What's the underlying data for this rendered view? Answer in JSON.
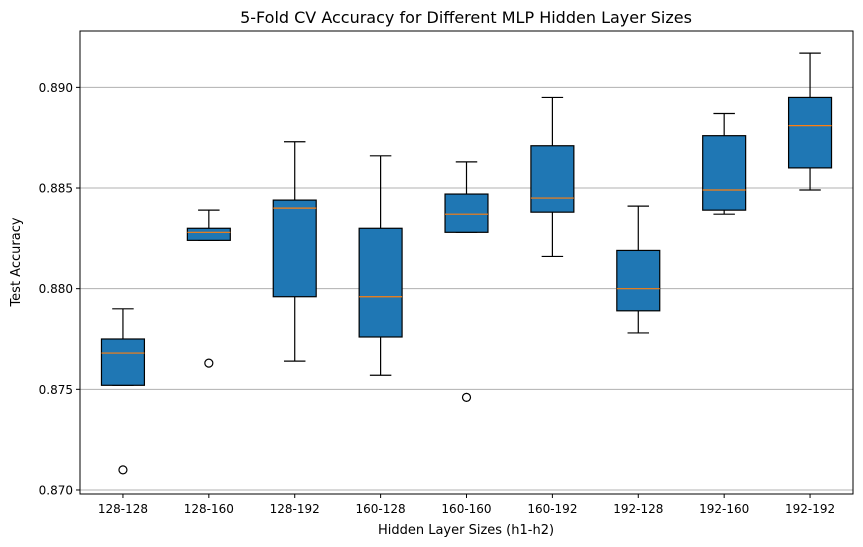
{
  "chart_data": {
    "type": "box",
    "title": "5-Fold CV Accuracy for Different MLP Hidden Layer Sizes",
    "xlabel": "Hidden Layer Sizes (h1-h2)",
    "ylabel": "Test Accuracy",
    "ylim": [
      0.8698,
      0.8928
    ],
    "yticks": [
      0.87,
      0.875,
      0.88,
      0.885,
      0.89
    ],
    "ytick_labels": [
      "0.870",
      "0.875",
      "0.880",
      "0.885",
      "0.890"
    ],
    "grid": "y",
    "categories": [
      "128-128",
      "128-160",
      "128-192",
      "160-128",
      "160-160",
      "160-192",
      "192-128",
      "192-160",
      "192-192"
    ],
    "boxes": [
      {
        "whisker_low": 0.8752,
        "q1": 0.8752,
        "median": 0.8768,
        "q3": 0.8775,
        "whisker_high": 0.879,
        "outliers": [
          0.871
        ]
      },
      {
        "whisker_low": 0.8824,
        "q1": 0.8824,
        "median": 0.8828,
        "q3": 0.883,
        "whisker_high": 0.8839,
        "outliers": [
          0.8763
        ]
      },
      {
        "whisker_low": 0.8764,
        "q1": 0.8796,
        "median": 0.884,
        "q3": 0.8844,
        "whisker_high": 0.8873,
        "outliers": []
      },
      {
        "whisker_low": 0.8757,
        "q1": 0.8776,
        "median": 0.8796,
        "q3": 0.883,
        "whisker_high": 0.8866,
        "outliers": []
      },
      {
        "whisker_low": 0.8828,
        "q1": 0.8828,
        "median": 0.8837,
        "q3": 0.8847,
        "whisker_high": 0.8863,
        "outliers": [
          0.8746
        ]
      },
      {
        "whisker_low": 0.8816,
        "q1": 0.8838,
        "median": 0.8845,
        "q3": 0.8871,
        "whisker_high": 0.8895,
        "outliers": []
      },
      {
        "whisker_low": 0.8778,
        "q1": 0.8789,
        "median": 0.88,
        "q3": 0.8819,
        "whisker_high": 0.8841,
        "outliers": []
      },
      {
        "whisker_low": 0.8837,
        "q1": 0.8839,
        "median": 0.8849,
        "q3": 0.8876,
        "whisker_high": 0.8887,
        "outliers": []
      },
      {
        "whisker_low": 0.8849,
        "q1": 0.886,
        "median": 0.8881,
        "q3": 0.8895,
        "whisker_high": 0.8917,
        "outliers": []
      }
    ],
    "colors": {
      "box_fill": "#1f77b4",
      "median": "#ff7f0e",
      "grid": "#b0b0b0"
    }
  }
}
